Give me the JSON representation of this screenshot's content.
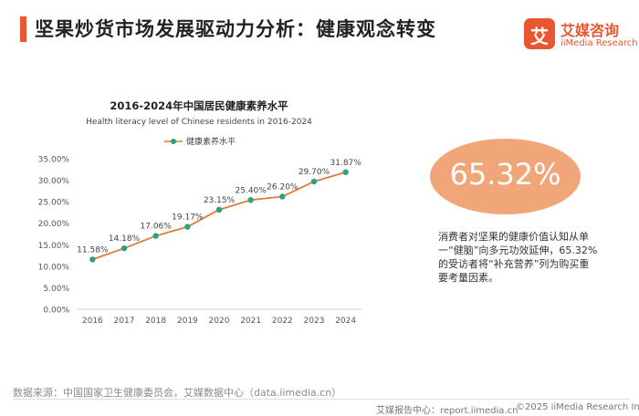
{
  "page": {
    "title": "坚果炒货市场发展驱动力分析：健康观念转变",
    "brand_mark": "艾",
    "brand_cn": "艾媒咨询",
    "brand_en": "iiMedia Research",
    "highlight_value": "65.32%",
    "note": "消费者对坚果的健康价值认知从单一“健脑”向多元功效延伸，65.32%的受访者将“补充营养”列为购买重要考量因素。",
    "source": "数据来源：中国国家卫生健康委员会，艾媒数据中心（data.iimedia.cn）",
    "footer_report": "艾媒报告中心：report.iimedia.cn",
    "footer_copyright": "©2025  iiMedia Research  Inc"
  },
  "colors": {
    "accent": "#e8572f",
    "bubble": "#f1a67a",
    "line": "#e07b39",
    "marker": "#2aa37a"
  },
  "chart_data": {
    "type": "line",
    "title": "2016-2024年中国居民健康素养水平",
    "subtitle": "Health literacy level of Chinese residents in 2016-2024",
    "legend": "健康素养水平",
    "legend_position": "top",
    "categories": [
      "2016",
      "2017",
      "2018",
      "2019",
      "2020",
      "2021",
      "2022",
      "2023",
      "2024"
    ],
    "values": [
      11.58,
      14.18,
      17.06,
      19.17,
      23.15,
      25.4,
      26.2,
      29.7,
      31.87
    ],
    "labels": [
      "11.58%",
      "14.18%",
      "17.06%",
      "19.17%",
      "23.15%",
      "25.40%",
      "26.20%",
      "29.70%",
      "31.87%"
    ],
    "y_ticks": [
      "0.00%",
      "5.00%",
      "10.00%",
      "15.00%",
      "20.00%",
      "25.00%",
      "30.00%",
      "35.00%"
    ],
    "ylim": [
      0,
      35
    ],
    "grid": false
  }
}
